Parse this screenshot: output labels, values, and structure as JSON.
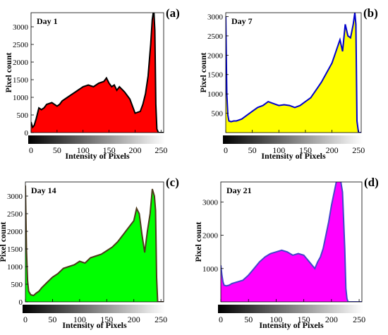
{
  "chart_data": [
    {
      "type": "area",
      "panel_label": "(a)",
      "title": "Day 1",
      "xlabel": "Intensity of Pixels",
      "ylabel": "Pixel count",
      "xlim": [
        0,
        255
      ],
      "ylim": [
        0,
        3400
      ],
      "xticks": [
        "0",
        "50",
        "100",
        "150",
        "200",
        "250"
      ],
      "yticks": [
        "0",
        "500",
        "1000",
        "1500",
        "2000",
        "2500",
        "3000"
      ],
      "grid": false,
      "fill_color": "#ff0000",
      "line_color": "#000000",
      "x": [
        0,
        3,
        6,
        10,
        15,
        20,
        25,
        30,
        40,
        50,
        55,
        60,
        70,
        80,
        90,
        100,
        110,
        120,
        130,
        140,
        145,
        150,
        155,
        160,
        165,
        170,
        180,
        190,
        200,
        210,
        215,
        220,
        225,
        230,
        233,
        236,
        238,
        240,
        242,
        245,
        250,
        255
      ],
      "y": [
        300,
        150,
        200,
        400,
        700,
        650,
        700,
        800,
        850,
        750,
        800,
        900,
        1000,
        1100,
        1200,
        1300,
        1350,
        1300,
        1400,
        1450,
        1550,
        1400,
        1300,
        1350,
        1200,
        1300,
        1150,
        950,
        550,
        600,
        800,
        1100,
        1600,
        2500,
        3200,
        3500,
        2900,
        800,
        100,
        0,
        0,
        0
      ]
    },
    {
      "type": "area",
      "panel_label": "(b)",
      "title": "Day 7",
      "xlabel": "Intensity of Pixels",
      "ylabel": "Pixel count",
      "xlim": [
        0,
        255
      ],
      "ylim": [
        0,
        3100
      ],
      "xticks": [
        "0",
        "50",
        "100",
        "150",
        "200",
        "250"
      ],
      "yticks": [
        "500",
        "1000",
        "1500",
        "2000",
        "2500",
        "3000"
      ],
      "grid": false,
      "fill_color": "#ffff00",
      "line_color": "#0000cc",
      "x": [
        0,
        2,
        4,
        6,
        10,
        15,
        20,
        30,
        40,
        50,
        60,
        70,
        80,
        90,
        100,
        110,
        120,
        130,
        140,
        150,
        160,
        170,
        180,
        190,
        200,
        205,
        210,
        215,
        220,
        225,
        230,
        235,
        240,
        243,
        245,
        247,
        250,
        255
      ],
      "y": [
        3000,
        1000,
        450,
        300,
        280,
        300,
        300,
        350,
        450,
        550,
        650,
        700,
        800,
        750,
        700,
        720,
        700,
        650,
        700,
        800,
        900,
        1100,
        1300,
        1550,
        1800,
        2000,
        2200,
        2400,
        2100,
        2800,
        2500,
        2450,
        2800,
        3100,
        2800,
        300,
        0,
        0
      ]
    },
    {
      "type": "area",
      "panel_label": "(c)",
      "title": "Day 14",
      "xlabel": "Intensity of Pixels",
      "ylabel": "Pixel count",
      "xlim": [
        0,
        255
      ],
      "ylim": [
        0,
        3400
      ],
      "xticks": [
        "0",
        "50",
        "100",
        "150",
        "200",
        "250"
      ],
      "yticks": [
        "0",
        "500",
        "1000",
        "1500",
        "2000",
        "2500",
        "3000"
      ],
      "grid": false,
      "fill_color": "#00ff00",
      "line_color": "#4b3a1a",
      "x": [
        0,
        2,
        4,
        6,
        10,
        15,
        20,
        25,
        30,
        40,
        50,
        60,
        70,
        80,
        90,
        100,
        110,
        120,
        130,
        140,
        150,
        160,
        170,
        180,
        190,
        200,
        205,
        210,
        215,
        220,
        225,
        230,
        234,
        238,
        240,
        242,
        244,
        250,
        255
      ],
      "y": [
        3300,
        1500,
        600,
        300,
        200,
        180,
        250,
        300,
        400,
        550,
        700,
        800,
        950,
        1000,
        1050,
        1150,
        1100,
        1250,
        1300,
        1350,
        1450,
        1550,
        1700,
        1900,
        2100,
        2300,
        2650,
        2500,
        1900,
        1400,
        2000,
        2500,
        3200,
        3000,
        2600,
        700,
        0,
        0,
        0
      ]
    },
    {
      "type": "area",
      "panel_label": "(d)",
      "title": "Day 21",
      "xlabel": "Intensity of Pixels",
      "ylabel": "Pixel count",
      "xlim": [
        0,
        255
      ],
      "ylim": [
        0,
        3600
      ],
      "xticks": [
        "0",
        "50",
        "100",
        "150",
        "200",
        "250"
      ],
      "yticks": [
        "1000",
        "2000",
        "3000"
      ],
      "grid": false,
      "fill_color": "#ff00ff",
      "line_color": "#4444cc",
      "x": [
        0,
        2,
        4,
        6,
        10,
        15,
        20,
        30,
        40,
        50,
        60,
        70,
        80,
        90,
        100,
        110,
        120,
        130,
        140,
        150,
        160,
        170,
        175,
        180,
        185,
        190,
        195,
        200,
        205,
        210,
        215,
        220,
        224,
        226,
        228,
        230,
        235,
        255
      ],
      "y": [
        1100,
        800,
        600,
        500,
        480,
        500,
        550,
        600,
        650,
        800,
        1000,
        1200,
        1350,
        1450,
        1500,
        1550,
        1500,
        1400,
        1450,
        1400,
        1200,
        1000,
        1200,
        1350,
        1600,
        2000,
        2400,
        2900,
        3300,
        3700,
        3800,
        3300,
        1600,
        400,
        100,
        0,
        0,
        0
      ]
    }
  ]
}
